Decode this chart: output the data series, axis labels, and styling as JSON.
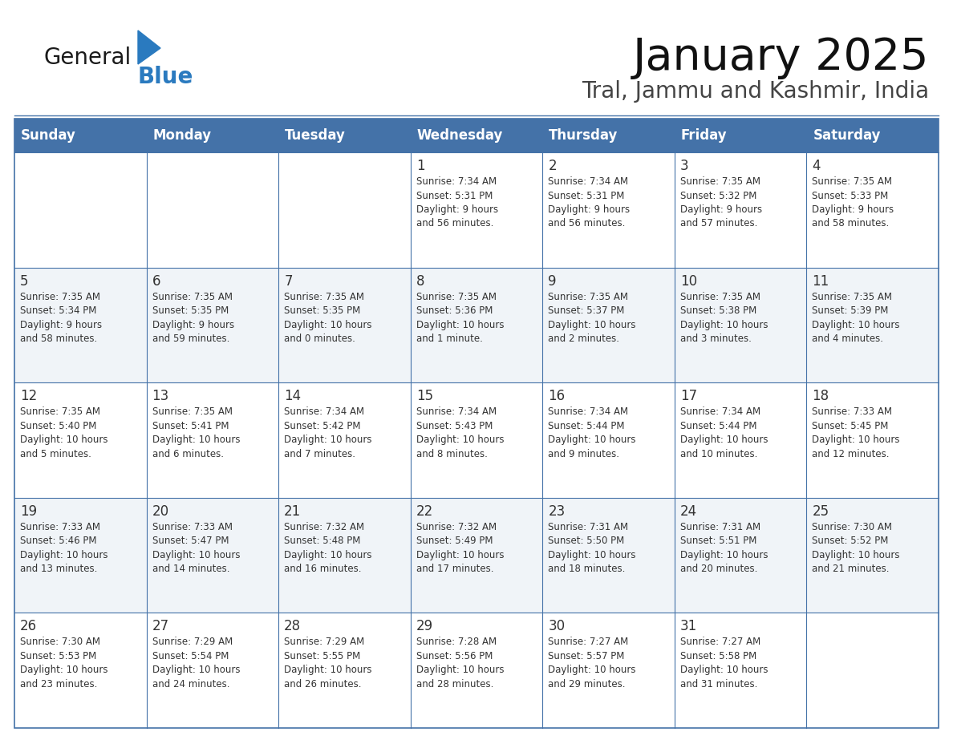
{
  "title": "January 2025",
  "subtitle": "Tral, Jammu and Kashmir, India",
  "header_color": "#4472a8",
  "header_text_color": "#ffffff",
  "border_color": "#4472a8",
  "text_color": "#333333",
  "day_num_color": "#333333",
  "days_of_week": [
    "Sunday",
    "Monday",
    "Tuesday",
    "Wednesday",
    "Thursday",
    "Friday",
    "Saturday"
  ],
  "weeks": [
    [
      {
        "day": "",
        "info": ""
      },
      {
        "day": "",
        "info": ""
      },
      {
        "day": "",
        "info": ""
      },
      {
        "day": "1",
        "info": "Sunrise: 7:34 AM\nSunset: 5:31 PM\nDaylight: 9 hours\nand 56 minutes."
      },
      {
        "day": "2",
        "info": "Sunrise: 7:34 AM\nSunset: 5:31 PM\nDaylight: 9 hours\nand 56 minutes."
      },
      {
        "day": "3",
        "info": "Sunrise: 7:35 AM\nSunset: 5:32 PM\nDaylight: 9 hours\nand 57 minutes."
      },
      {
        "day": "4",
        "info": "Sunrise: 7:35 AM\nSunset: 5:33 PM\nDaylight: 9 hours\nand 58 minutes."
      }
    ],
    [
      {
        "day": "5",
        "info": "Sunrise: 7:35 AM\nSunset: 5:34 PM\nDaylight: 9 hours\nand 58 minutes."
      },
      {
        "day": "6",
        "info": "Sunrise: 7:35 AM\nSunset: 5:35 PM\nDaylight: 9 hours\nand 59 minutes."
      },
      {
        "day": "7",
        "info": "Sunrise: 7:35 AM\nSunset: 5:35 PM\nDaylight: 10 hours\nand 0 minutes."
      },
      {
        "day": "8",
        "info": "Sunrise: 7:35 AM\nSunset: 5:36 PM\nDaylight: 10 hours\nand 1 minute."
      },
      {
        "day": "9",
        "info": "Sunrise: 7:35 AM\nSunset: 5:37 PM\nDaylight: 10 hours\nand 2 minutes."
      },
      {
        "day": "10",
        "info": "Sunrise: 7:35 AM\nSunset: 5:38 PM\nDaylight: 10 hours\nand 3 minutes."
      },
      {
        "day": "11",
        "info": "Sunrise: 7:35 AM\nSunset: 5:39 PM\nDaylight: 10 hours\nand 4 minutes."
      }
    ],
    [
      {
        "day": "12",
        "info": "Sunrise: 7:35 AM\nSunset: 5:40 PM\nDaylight: 10 hours\nand 5 minutes."
      },
      {
        "day": "13",
        "info": "Sunrise: 7:35 AM\nSunset: 5:41 PM\nDaylight: 10 hours\nand 6 minutes."
      },
      {
        "day": "14",
        "info": "Sunrise: 7:34 AM\nSunset: 5:42 PM\nDaylight: 10 hours\nand 7 minutes."
      },
      {
        "day": "15",
        "info": "Sunrise: 7:34 AM\nSunset: 5:43 PM\nDaylight: 10 hours\nand 8 minutes."
      },
      {
        "day": "16",
        "info": "Sunrise: 7:34 AM\nSunset: 5:44 PM\nDaylight: 10 hours\nand 9 minutes."
      },
      {
        "day": "17",
        "info": "Sunrise: 7:34 AM\nSunset: 5:44 PM\nDaylight: 10 hours\nand 10 minutes."
      },
      {
        "day": "18",
        "info": "Sunrise: 7:33 AM\nSunset: 5:45 PM\nDaylight: 10 hours\nand 12 minutes."
      }
    ],
    [
      {
        "day": "19",
        "info": "Sunrise: 7:33 AM\nSunset: 5:46 PM\nDaylight: 10 hours\nand 13 minutes."
      },
      {
        "day": "20",
        "info": "Sunrise: 7:33 AM\nSunset: 5:47 PM\nDaylight: 10 hours\nand 14 minutes."
      },
      {
        "day": "21",
        "info": "Sunrise: 7:32 AM\nSunset: 5:48 PM\nDaylight: 10 hours\nand 16 minutes."
      },
      {
        "day": "22",
        "info": "Sunrise: 7:32 AM\nSunset: 5:49 PM\nDaylight: 10 hours\nand 17 minutes."
      },
      {
        "day": "23",
        "info": "Sunrise: 7:31 AM\nSunset: 5:50 PM\nDaylight: 10 hours\nand 18 minutes."
      },
      {
        "day": "24",
        "info": "Sunrise: 7:31 AM\nSunset: 5:51 PM\nDaylight: 10 hours\nand 20 minutes."
      },
      {
        "day": "25",
        "info": "Sunrise: 7:30 AM\nSunset: 5:52 PM\nDaylight: 10 hours\nand 21 minutes."
      }
    ],
    [
      {
        "day": "26",
        "info": "Sunrise: 7:30 AM\nSunset: 5:53 PM\nDaylight: 10 hours\nand 23 minutes."
      },
      {
        "day": "27",
        "info": "Sunrise: 7:29 AM\nSunset: 5:54 PM\nDaylight: 10 hours\nand 24 minutes."
      },
      {
        "day": "28",
        "info": "Sunrise: 7:29 AM\nSunset: 5:55 PM\nDaylight: 10 hours\nand 26 minutes."
      },
      {
        "day": "29",
        "info": "Sunrise: 7:28 AM\nSunset: 5:56 PM\nDaylight: 10 hours\nand 28 minutes."
      },
      {
        "day": "30",
        "info": "Sunrise: 7:27 AM\nSunset: 5:57 PM\nDaylight: 10 hours\nand 29 minutes."
      },
      {
        "day": "31",
        "info": "Sunrise: 7:27 AM\nSunset: 5:58 PM\nDaylight: 10 hours\nand 31 minutes."
      },
      {
        "day": "",
        "info": ""
      }
    ]
  ],
  "logo_general_color": "#1a1a1a",
  "logo_blue_color": "#2a7abf",
  "figsize": [
    11.88,
    9.18
  ],
  "dpi": 100
}
